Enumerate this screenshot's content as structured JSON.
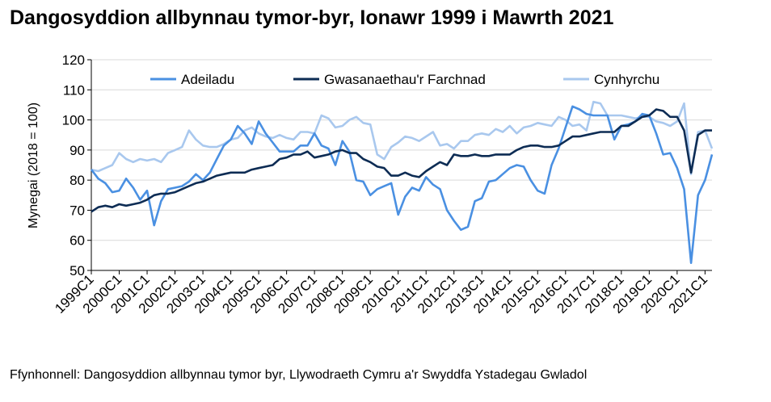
{
  "title": "Dangosyddion allbynnau tymor-byr, Ionawr 1999 i Mawrth 2021",
  "source": "Ffynhonnell: Dangosyddion allbynnau tymor byr, Llywodraeth Cymru a'r Swyddfa Ystadegau Gwladol",
  "chart_data": {
    "type": "line",
    "title": "Dangosyddion allbynnau tymor-byr, Ionawr 1999 i Mawrth 2021",
    "xlabel": "",
    "ylabel": "Mynegai (2018 = 100)",
    "ylim": [
      50,
      120
    ],
    "yticks": [
      50,
      60,
      70,
      80,
      90,
      100,
      110,
      120
    ],
    "grid": "horizontal",
    "legend": "top",
    "tick_labels": [
      "1999C1",
      "2000C1",
      "2001C1",
      "2002C1",
      "2003C1",
      "2004C1",
      "2005C1",
      "2006C1",
      "2007C1",
      "2008C1",
      "2009C1",
      "2010C1",
      "2011C1",
      "2012C1",
      "2013C1",
      "2014C1",
      "2015C1",
      "2016C1",
      "2017C1",
      "2018C1",
      "2019C1",
      "2020C1",
      "2021C1"
    ],
    "x_start": "1999C1",
    "series": [
      {
        "name": "Adeiladu",
        "color": "#4a90e2",
        "values": [
          83.5,
          80.5,
          79,
          76,
          76.5,
          80.5,
          77.5,
          73.5,
          76.5,
          65,
          73,
          77,
          77.5,
          78,
          79.5,
          82,
          80,
          82.5,
          87,
          91.5,
          93.5,
          98,
          95.5,
          92,
          99.5,
          95.5,
          92.5,
          89.5,
          89.5,
          89.5,
          91.5,
          91.5,
          95.5,
          91.5,
          90.5,
          85,
          93,
          89.5,
          80,
          79.5,
          75,
          77,
          78,
          79,
          68.5,
          74.5,
          77.5,
          76.5,
          81,
          78.5,
          77,
          70,
          66.5,
          63.5,
          64.5,
          73,
          74,
          79.5,
          80,
          82,
          84,
          85,
          84.5,
          80,
          76.5,
          75.5,
          85,
          90.5,
          97.5,
          104.5,
          103.5,
          102,
          101.5,
          101.5,
          101.5,
          93.5,
          98,
          98.5,
          99.5,
          102,
          101.5,
          95.5,
          88.5,
          89,
          84,
          77,
          52.5,
          75,
          80,
          88.5
        ]
      },
      {
        "name": "Gwasanaethau'r Farchnad",
        "color": "#0d2c54",
        "values": [
          69.5,
          71,
          71.5,
          71,
          72,
          71.5,
          72,
          72.5,
          73.5,
          75,
          75.5,
          75.5,
          76,
          77,
          78,
          79,
          79.5,
          80.5,
          81.5,
          82,
          82.5,
          82.5,
          82.5,
          83.5,
          84,
          84.5,
          85,
          87,
          87.5,
          88.5,
          88.5,
          89.5,
          87.5,
          88,
          88.5,
          89.5,
          90,
          89,
          89,
          87,
          86,
          84.5,
          84,
          81.5,
          81.5,
          82.5,
          81.5,
          81,
          83,
          84.5,
          86,
          85,
          88.5,
          88,
          88,
          88.5,
          88,
          88,
          88.5,
          88.5,
          88.5,
          90,
          91,
          91.5,
          91.5,
          91,
          91,
          91.5,
          93,
          94.5,
          94.5,
          95,
          95.5,
          96,
          96,
          96,
          98,
          98,
          99.5,
          101,
          101.5,
          103.5,
          103,
          101,
          101,
          96.5,
          82.5,
          95,
          96.5,
          96.5
        ]
      },
      {
        "name": "Cynhyrchu",
        "color": "#a9c8ee",
        "values": [
          83.5,
          83,
          84,
          85,
          89,
          87,
          86,
          87,
          86.5,
          87,
          86,
          89,
          90,
          91,
          96.5,
          93.5,
          91.5,
          91,
          91,
          92,
          93.5,
          94,
          96.5,
          97.5,
          95.5,
          94.5,
          94,
          95,
          94,
          93.5,
          96,
          96,
          95.5,
          101.5,
          100.5,
          97.5,
          98,
          100,
          101,
          99,
          98.5,
          88.5,
          87,
          91,
          92.5,
          94.5,
          94,
          93,
          94.5,
          96,
          91.5,
          92,
          90.5,
          93,
          93,
          95,
          95.5,
          95,
          97,
          96,
          98,
          95.5,
          97.5,
          98,
          99,
          98.5,
          98,
          101,
          100,
          98,
          98.5,
          96.5,
          106,
          105.5,
          101.5,
          101.5,
          101.5,
          101,
          100.5,
          101,
          101,
          99.5,
          99,
          98,
          99.5,
          105.5,
          82,
          96,
          96.5,
          90.5
        ]
      }
    ]
  }
}
